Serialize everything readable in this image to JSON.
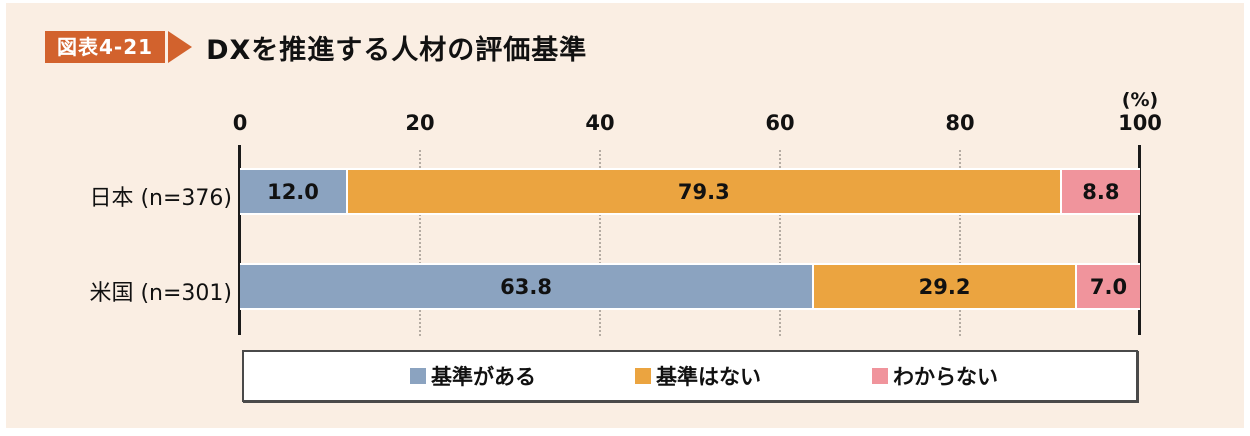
{
  "figure": {
    "badge_label": "図表4-21",
    "title": "DXを推進する人材の評価基準"
  },
  "colors": {
    "panel_bg": "#faeee3",
    "badge": "#d2622d",
    "axis": "#1a1a1a",
    "gridline": "#b5aca3",
    "legend_border": "#4a4a4a"
  },
  "chart_data": {
    "type": "bar",
    "stacked": true,
    "orientation": "horizontal",
    "title": "DXを推進する人材の評価基準",
    "unit_label": "(%)",
    "xlim": [
      0,
      100
    ],
    "xticks": [
      0,
      20,
      40,
      60,
      80,
      100
    ],
    "grid": "vertical-dotted-at-20-40-60-80",
    "legend_position": "bottom-boxed",
    "categories": [
      "日本 (n=376)",
      "米国 (n=301)"
    ],
    "series": [
      {
        "name": "基準がある",
        "color": "#8ba3c0",
        "values": [
          12.0,
          63.8
        ]
      },
      {
        "name": "基準はない",
        "color": "#eba440",
        "values": [
          79.3,
          29.2
        ]
      },
      {
        "name": "わからない",
        "color": "#f0949c",
        "values": [
          8.8,
          7.0
        ]
      }
    ]
  }
}
